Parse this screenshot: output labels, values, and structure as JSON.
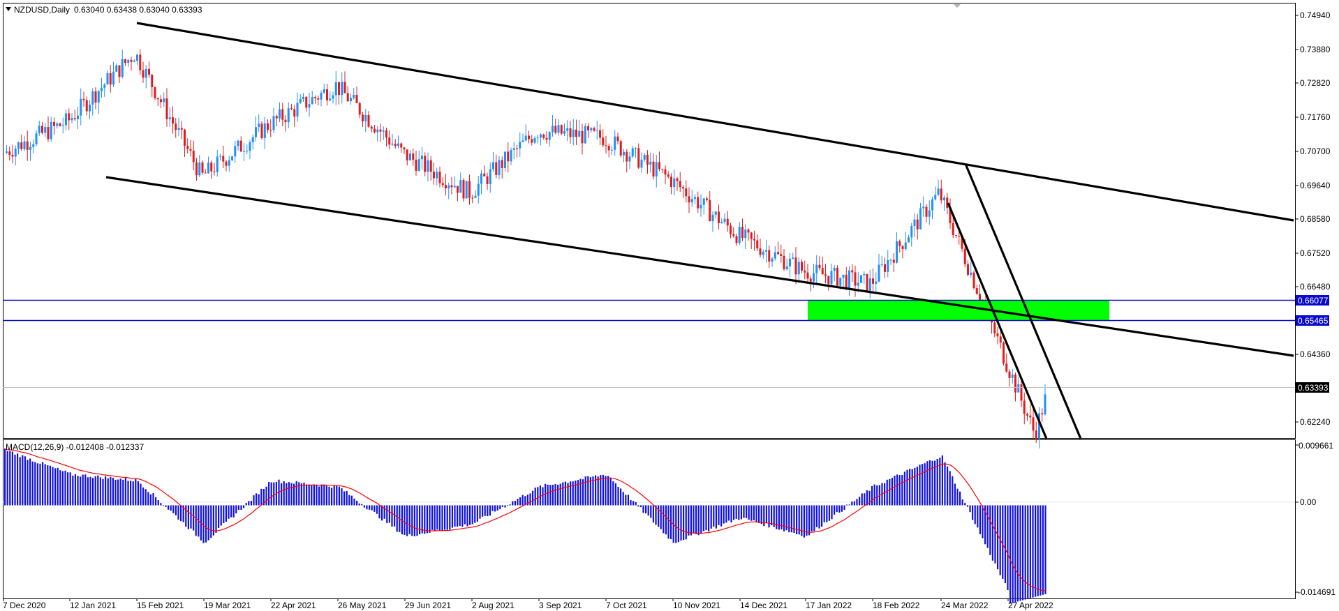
{
  "window": {
    "symbol_label": "NZDUSD,Daily",
    "ohlc_label": "0.63040 0.63438 0.63040 0.63393"
  },
  "indicator": {
    "label": "MACD(12,26,9) -0.012408 -0.012337"
  },
  "colors": {
    "bull_candle": "#1e90ff",
    "bear_candle": "#e41b1b",
    "trendline": "#000000",
    "hline": "#0a0acc",
    "zone": "#00ff00",
    "macd_hist": "#1010e0",
    "macd_signal": "#ff0000"
  },
  "price_axis": {
    "ticks": [
      "0.74940",
      "0.73880",
      "0.72820",
      "0.71760",
      "0.70700",
      "0.69640",
      "0.68580",
      "0.67520",
      "0.66480",
      "0.64360",
      "0.62240"
    ],
    "hline_labels": [
      "0.66077",
      "0.65465"
    ],
    "current_price": "0.63393"
  },
  "macd_axis": {
    "ticks": [
      "0.009661",
      "0.00",
      "-0.014691"
    ]
  },
  "time_axis": {
    "labels": [
      "7 Dec 2020",
      "12 Jan 2021",
      "15 Feb 2021",
      "19 Mar 2021",
      "22 Apr 2021",
      "26 May 2021",
      "29 Jun 2021",
      "2 Aug 2021",
      "3 Sep 2021",
      "7 Oct 2021",
      "10 Nov 2021",
      "14 Dec 2021",
      "17 Jan 2022",
      "18 Feb 2022",
      "24 Mar 2022",
      "27 Apr 2022"
    ]
  },
  "chart_data": {
    "type": "line",
    "title": "NZDUSD,Daily",
    "series": [
      {
        "name": "NZDUSD",
        "x": [
          "7 Dec 2020",
          "12 Jan 2021",
          "15 Feb 2021",
          "19 Mar 2021",
          "22 Apr 2021",
          "26 May 2021",
          "29 Jun 2021",
          "2 Aug 2021",
          "3 Sep 2021",
          "7 Oct 2021",
          "10 Nov 2021",
          "14 Dec 2021",
          "17 Jan 2022",
          "18 Feb 2022",
          "24 Mar 2022",
          "27 Apr 2022"
        ],
        "values": [
          0.707,
          0.717,
          0.738,
          0.7,
          0.716,
          0.728,
          0.707,
          0.695,
          0.714,
          0.712,
          0.699,
          0.682,
          0.671,
          0.667,
          0.695,
          0.643
        ]
      },
      {
        "name": "MACD(12,26,9)",
        "values": [
          0.009,
          0.005,
          0.004,
          -0.006,
          0.004,
          0.003,
          -0.005,
          -0.003,
          0.003,
          0.005,
          -0.006,
          -0.002,
          -0.005,
          0.003,
          0.008,
          -0.014
        ]
      }
    ],
    "horizontal_levels": [
      0.66077,
      0.65465
    ],
    "current_price": 0.63393,
    "ylim": [
      0.6196,
      0.7532
    ],
    "macd_ylim": [
      -0.015,
      0.0105
    ],
    "grid": false
  }
}
